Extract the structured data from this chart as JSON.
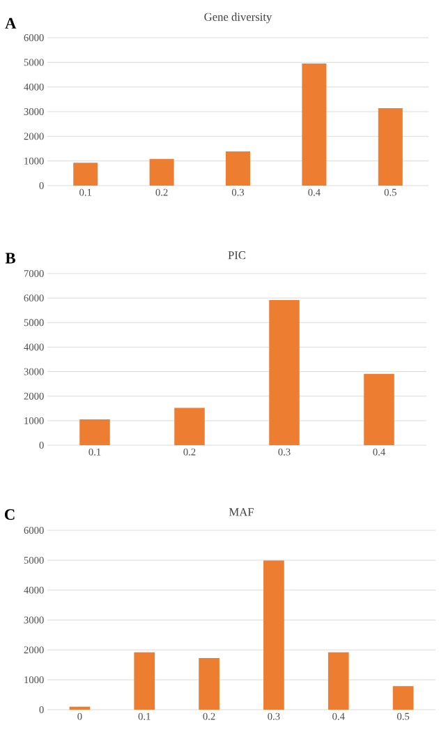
{
  "chart_data": [
    {
      "type": "bar",
      "title": "Gene diversity",
      "annotations": [
        "A"
      ],
      "categories": [
        "0.1",
        "0.2",
        "0.3",
        "0.4",
        "0.5"
      ],
      "values": [
        930,
        1080,
        1390,
        4950,
        3140
      ],
      "color": "#ed7d31",
      "ylim": [
        0,
        6000
      ],
      "yticks": [
        0,
        1000,
        2000,
        3000,
        4000,
        5000,
        6000
      ],
      "grid": "y"
    },
    {
      "type": "bar",
      "title": "PIC",
      "annotations": [
        "B"
      ],
      "categories": [
        "0.1",
        "0.2",
        "0.3",
        "0.4"
      ],
      "values": [
        1050,
        1520,
        5920,
        2910
      ],
      "color": "#ed7d31",
      "ylim": [
        0,
        7000
      ],
      "yticks": [
        0,
        1000,
        2000,
        3000,
        4000,
        5000,
        6000,
        7000
      ],
      "grid": "y"
    },
    {
      "type": "bar",
      "title": "MAF",
      "annotations": [
        "C"
      ],
      "categories": [
        "0",
        "0.1",
        "0.2",
        "0.3",
        "0.4",
        "0.5"
      ],
      "values": [
        100,
        1920,
        1730,
        4990,
        1920,
        790
      ],
      "color": "#ed7d31",
      "ylim": [
        0,
        6000
      ],
      "yticks": [
        0,
        1000,
        2000,
        3000,
        4000,
        5000,
        6000
      ],
      "grid": "y"
    }
  ]
}
